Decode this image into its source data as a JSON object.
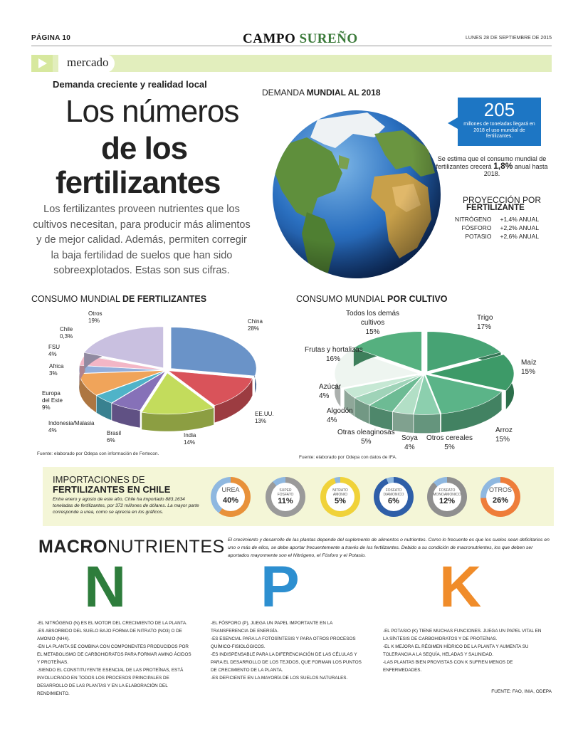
{
  "header": {
    "page": "PÁGINA 10",
    "brand_a": "CAMPO",
    "brand_b": "SUREÑO",
    "date": "LUNES 28 DE SEPTIEMBRE DE 2015"
  },
  "section": {
    "label": "mercado"
  },
  "article": {
    "kicker": "Demanda creciente y realidad local",
    "title_1": "Los números",
    "title_2": "de los",
    "title_3": "fertilizantes",
    "lead": "Los fertilizantes proveen nutrientes que los cultivos necesitan, para producir más alimentos y de mejor calidad. Además, permiten corregir la baja fertilidad de suelos que han sido sobreexplotados. Estas son sus cifras."
  },
  "demand": {
    "title_a": "DEMANDA ",
    "title_b": "MUNDIAL AL 2018",
    "number": "205",
    "number_text": "millones de toneladas llegará en 2018 el uso mundial de fertilizantes.",
    "growth_text": "Se estima que el consumo mundial de fertilizantes crecerá ",
    "growth_value": "1,8%",
    "growth_tail": " anual hasta 2018.",
    "proj_t1": "PROYECCIÓN POR",
    "proj_t2": "FERTILIZANTE",
    "proj": [
      {
        "name": "NITRÓGENO",
        "value": "+1,4% ANUAL"
      },
      {
        "name": "FÓSFORO",
        "value": "+2,2% ANUAL"
      },
      {
        "name": "POTASIO",
        "value": "+2,6% ANUAL"
      }
    ]
  },
  "chart_data": [
    {
      "type": "pie",
      "title_a": "CONSUMO MUNDIAL ",
      "title_b": "DE FERTILIZANTES",
      "source": "Fuente: elaborado por Odepa con información de Fertecon.",
      "slices": [
        {
          "name": "China",
          "value": 28,
          "color": "#6a93c8"
        },
        {
          "name": "EE.UU.",
          "value": 13,
          "color": "#d9535a"
        },
        {
          "name": "India",
          "value": 14,
          "color": "#c3dc5c"
        },
        {
          "name": "Brasil",
          "value": 6,
          "color": "#8671b8"
        },
        {
          "name": "Indonesia/Malasia",
          "value": 4,
          "color": "#4fb3c8"
        },
        {
          "name": "Europa del Este",
          "value": 9,
          "color": "#f0a45a"
        },
        {
          "name": "Africa",
          "value": 3,
          "color": "#93aedb"
        },
        {
          "name": "FSU",
          "value": 4,
          "color": "#f3b6c6"
        },
        {
          "name": "Chile",
          "value": 0.3,
          "color": "#d8d8d8"
        },
        {
          "name": "Otros",
          "value": 19,
          "color": "#c9c0e0"
        }
      ],
      "labels": [
        {
          "name": "China",
          "pct": "28%"
        },
        {
          "name": "EE.UU.",
          "pct": "13%"
        },
        {
          "name": "India",
          "pct": "14%"
        },
        {
          "name": "Brasil",
          "pct": "6%"
        },
        {
          "name": "Indonesia/Malasia",
          "pct": "4%"
        },
        {
          "name": "Europa",
          "name2": "del Este",
          "pct": "9%"
        },
        {
          "name": "Africa",
          "pct": "3%"
        },
        {
          "name": "FSU",
          "pct": "4%"
        },
        {
          "name": "Chile",
          "pct": "0,3%"
        },
        {
          "name": "Otros",
          "pct": "19%"
        }
      ]
    },
    {
      "type": "pie",
      "title_a": "CONSUMO MUNDIAL ",
      "title_b": "POR CULTIVO",
      "source": "Fuente: elaborado por Odepa con datos de IFA.",
      "slices": [
        {
          "name": "Trigo",
          "value": 17,
          "color": "#47a374"
        },
        {
          "name": "Maíz",
          "value": 15,
          "color": "#3d9a68"
        },
        {
          "name": "Arroz",
          "value": 15,
          "color": "#5bb488"
        },
        {
          "name": "Otros cereales",
          "value": 5,
          "color": "#8ccfae"
        },
        {
          "name": "Soya",
          "value": 4,
          "color": "#b2dfc6"
        },
        {
          "name": "Otras oleaginosas",
          "value": 5,
          "color": "#6dbb94"
        },
        {
          "name": "Algodón",
          "value": 4,
          "color": "#9fd3b8"
        },
        {
          "name": "Azúcar",
          "value": 4,
          "color": "#c6e8d4"
        },
        {
          "name": "Frutas y hortalizas",
          "value": 16,
          "color": "#eef5f0"
        },
        {
          "name": "Todos los demás cultivos",
          "value": 15,
          "color": "#55b07f"
        }
      ],
      "labels": [
        {
          "name": "Trigo",
          "pct": "17%"
        },
        {
          "name": "Maíz",
          "pct": "15%"
        },
        {
          "name": "Arroz",
          "pct": "15%"
        },
        {
          "name": "Otros cereales",
          "pct": "5%"
        },
        {
          "name": "Soya",
          "pct": "4%"
        },
        {
          "name": "Otras oleaginosas",
          "pct": "5%"
        },
        {
          "name": "Algodón",
          "pct": "4%"
        },
        {
          "name": "Azúcar",
          "pct": "4%"
        },
        {
          "name": "Frutas y hortalizas",
          "pct": "16%"
        },
        {
          "name": "Todos los demás",
          "name2": "cultivos",
          "pct": "15%"
        }
      ]
    },
    {
      "type": "donut",
      "title_a": "IMPORTACIONES DE",
      "title_b": "FERTILIZANTES EN CHILE",
      "text": "Entre enero y agosto de este año, Chile ha importado 883.1634 toneladas de fertilizantes, por 372 millones de dólares. La mayor parte corresponde a urea, como se aprecia en los gráficos.",
      "items": [
        {
          "label": "UREA",
          "pct": "40%",
          "value": 40,
          "color": "#e8913a",
          "size": "big"
        },
        {
          "label": "SUPER FOSFATO",
          "pct": "11%",
          "value": 11,
          "color": "#9a9a9a",
          "size": "sm"
        },
        {
          "label": "NITRATO AMONIO",
          "pct": "5%",
          "value": 5,
          "color": "#f0d23a",
          "size": "sm"
        },
        {
          "label": "FOSFATO DIAMONICO",
          "pct": "6%",
          "value": 6,
          "color": "#2f5fa8",
          "size": "sm"
        },
        {
          "label": "FOSFATO MONOAMONICO",
          "pct": "12%",
          "value": 12,
          "color": "#8f8f8f",
          "size": "sm"
        },
        {
          "label": "OTROS",
          "pct": "26%",
          "value": 26,
          "color": "#ee7d3a",
          "size": "big"
        }
      ]
    }
  ],
  "macro": {
    "title_bold": "MACRO",
    "title_light": "NUTRIENTES",
    "intro": "El crecimiento y desarrollo de las plantas depende del suplemento de alimentos o nutrientes. Como lo frecuente es que los suelos sean deficitarios en uno o más de ellos, se debe aportar frecuentemente a través de los fertilizantes. Debido a su condición de macronutrientes, los que deben ser aportados mayormente son el Nitrógeno, el Fósforo y el Potasio.",
    "letters": [
      {
        "letter": "N",
        "color": "#2e7d3c"
      },
      {
        "letter": "P",
        "color": "#2d8fd0"
      },
      {
        "letter": "K",
        "color": "#f08c2a"
      }
    ],
    "n_lines": [
      "-El nitrógeno (N) es el motor del crecimiento de la planta.",
      "-Es absorbido del suelo bajo forma de nitrato (NO3) o de amonio (NH4).",
      "-En la planta se combina con componentes producidos por el metabolismo de carbohidratos para formar amino ácidos y proteínas.",
      "-Siendo el constituyente esencial de las proteínas, está involucrado en todos los procesos principales de desarrollo de las plantas y en la elaboración del rendimiento."
    ],
    "p_lines": [
      "-El fósforo (P), juega un papel importante en la transferencia de energía.",
      "-Es esencial para la fotosíntesis y para otros procesos químico-fisiológicos.",
      "-Es indispensable para la diferenciación de las células y para el desarrollo de los tejidos, que forman los puntos de crecimiento de la planta.",
      "-Es deficiente en la mayoría de los suelos naturales."
    ],
    "k_lines": [
      "-El potasio (K) tiene muchas funciones. Juega un papel vital en la síntesis de carbohidratos y de proteínas.",
      "-El K mejora el régimen hídrico de la planta y aumenta su tolerancia a la sequía, heladas y salinidad.",
      "-Las plantas bien provistas con K sufren menos de enfermedades."
    ],
    "source": "FUENTE: FAO, INIA, ODEPA"
  }
}
